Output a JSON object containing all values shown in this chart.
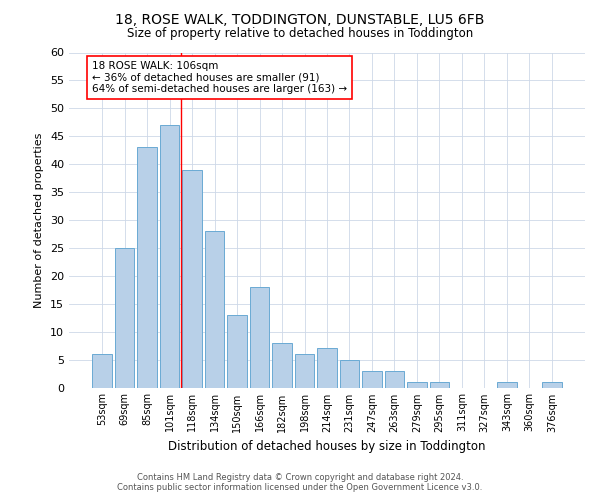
{
  "title": "18, ROSE WALK, TODDINGTON, DUNSTABLE, LU5 6FB",
  "subtitle": "Size of property relative to detached houses in Toddington",
  "xlabel": "Distribution of detached houses by size in Toddington",
  "ylabel": "Number of detached properties",
  "categories": [
    "53sqm",
    "69sqm",
    "85sqm",
    "101sqm",
    "118sqm",
    "134sqm",
    "150sqm",
    "166sqm",
    "182sqm",
    "198sqm",
    "214sqm",
    "231sqm",
    "247sqm",
    "263sqm",
    "279sqm",
    "295sqm",
    "311sqm",
    "327sqm",
    "343sqm",
    "360sqm",
    "376sqm"
  ],
  "values": [
    6,
    25,
    43,
    47,
    39,
    28,
    13,
    18,
    8,
    6,
    7,
    5,
    3,
    3,
    1,
    1,
    0,
    0,
    1,
    0,
    1
  ],
  "bar_color": "#b8d0e8",
  "bar_edge_color": "#6aaad4",
  "red_line_index": 3,
  "annotation_line1": "18 ROSE WALK: 106sqm",
  "annotation_line2": "← 36% of detached houses are smaller (91)",
  "annotation_line3": "64% of semi-detached houses are larger (163) →",
  "ylim": [
    0,
    60
  ],
  "yticks": [
    0,
    5,
    10,
    15,
    20,
    25,
    30,
    35,
    40,
    45,
    50,
    55,
    60
  ],
  "footer1": "Contains HM Land Registry data © Crown copyright and database right 2024.",
  "footer2": "Contains public sector information licensed under the Open Government Licence v3.0.",
  "background_color": "#ffffff",
  "grid_color": "#cdd8e8"
}
